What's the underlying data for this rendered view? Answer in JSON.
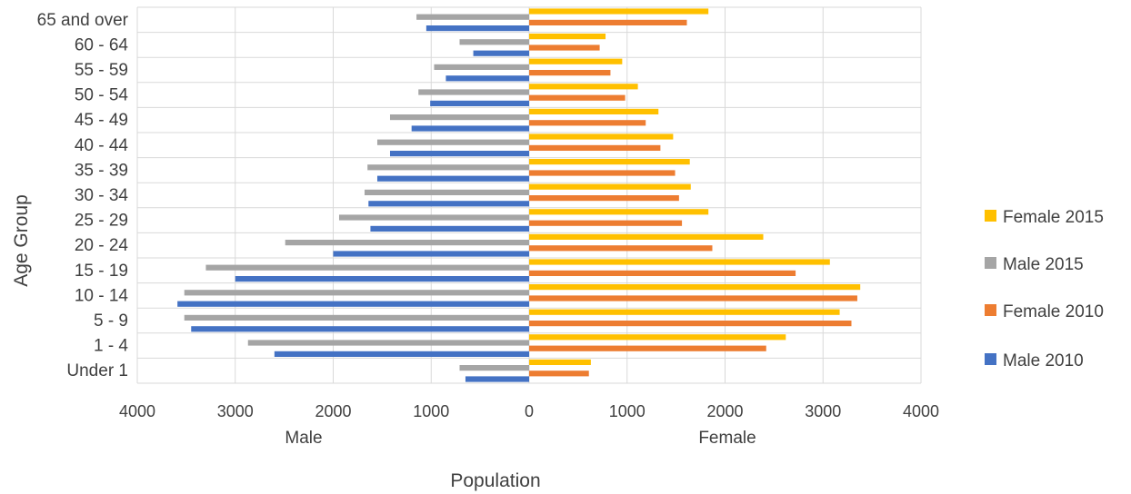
{
  "chart_data": {
    "type": "bar",
    "orientation": "horizontal",
    "title": "",
    "xlabel": "Population",
    "ylabel": "Age Group",
    "side_labels": {
      "left": "Male",
      "right": "Female"
    },
    "xlim": [
      -4000,
      4000
    ],
    "x_ticks": [
      {
        "value": -4000,
        "label": "4000"
      },
      {
        "value": -3000,
        "label": "3000"
      },
      {
        "value": -2000,
        "label": "2000"
      },
      {
        "value": -1000,
        "label": "1000"
      },
      {
        "value": 0,
        "label": "0"
      },
      {
        "value": 1000,
        "label": "1000"
      },
      {
        "value": 2000,
        "label": "2000"
      },
      {
        "value": 3000,
        "label": "3000"
      },
      {
        "value": 4000,
        "label": "4000"
      }
    ],
    "grid": true,
    "legend_position": "right",
    "categories": [
      "65 and over",
      "60 - 64",
      "55 - 59",
      "50 - 54",
      "45 - 49",
      "40 - 44",
      "35 - 39",
      "30 - 34",
      "25 - 29",
      "20 - 24",
      "15 - 19",
      "10 - 14",
      "5 - 9",
      "1 - 4",
      "Under 1"
    ],
    "series": [
      {
        "name": "Female 2015",
        "color": "#FFC000",
        "values": [
          1830,
          780,
          950,
          1110,
          1320,
          1470,
          1640,
          1650,
          1830,
          2390,
          3070,
          3380,
          3170,
          2620,
          630
        ]
      },
      {
        "name": "Male 2015",
        "color": "#A5A5A5",
        "values": [
          -1150,
          -710,
          -970,
          -1130,
          -1420,
          -1550,
          -1650,
          -1680,
          -1940,
          -2490,
          -3300,
          -3520,
          -3520,
          -2870,
          -710
        ]
      },
      {
        "name": "Female 2010",
        "color": "#ED7D31",
        "values": [
          1610,
          720,
          830,
          980,
          1190,
          1340,
          1490,
          1530,
          1560,
          1870,
          2720,
          3350,
          3290,
          2420,
          610
        ]
      },
      {
        "name": "Male 2010",
        "color": "#4472C4",
        "values": [
          -1050,
          -570,
          -850,
          -1010,
          -1200,
          -1420,
          -1550,
          -1640,
          -1620,
          -2000,
          -3000,
          -3590,
          -3450,
          -2600,
          -650
        ]
      }
    ]
  }
}
